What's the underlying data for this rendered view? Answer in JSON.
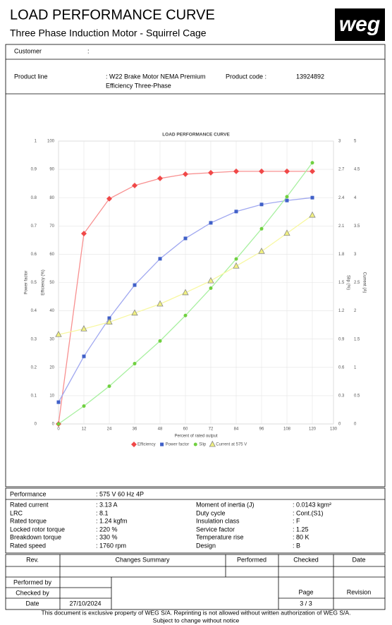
{
  "header": {
    "title": "LOAD PERFORMANCE CURVE",
    "subtitle": "Three Phase Induction Motor - Squirrel Cage",
    "logo": "weg"
  },
  "customer": {
    "label": "Customer",
    "separator": ":"
  },
  "product": {
    "line_label": "Product line",
    "line_value": [
      ": W22 Brake Motor NEMA Premium",
      "Efficiency Three-Phase"
    ],
    "code_label": "Product code :",
    "code_value": "13924892"
  },
  "chart_data": {
    "type": "line",
    "title": "LOAD PERFORMANCE CURVE",
    "xlabel": "Percent of rated output",
    "xlim": [
      0,
      130
    ],
    "xticks": [
      0,
      12,
      24,
      36,
      48,
      60,
      72,
      84,
      96,
      108,
      120,
      130
    ],
    "ylim": [
      0,
      1
    ],
    "yticks": [
      0,
      0.1,
      0.2,
      0.3,
      0.4,
      0.5,
      0.6,
      0.7,
      0.8,
      0.9,
      1
    ],
    "ylabel": "Power factor",
    "y2lim": [
      0,
      100
    ],
    "y2ticks": [
      0,
      10,
      20,
      30,
      40,
      50,
      60,
      70,
      80,
      90,
      100
    ],
    "y2label": "Efficiency (%)",
    "y3lim": [
      0,
      3
    ],
    "y3ticks": [
      0,
      0.3,
      0.6,
      0.9,
      1.2,
      1.5,
      1.8,
      2.1,
      2.4,
      2.7,
      3
    ],
    "y3label": "Slip (%)",
    "y4lim": [
      0,
      5
    ],
    "y4ticks": [
      0,
      0.5,
      1,
      1.5,
      2,
      2.5,
      3,
      3.5,
      4,
      4.5,
      5
    ],
    "y4label": "Current (A)",
    "grid": true,
    "legend": "bottom",
    "x": [
      0,
      12,
      24,
      36,
      48,
      60,
      72,
      84,
      96,
      108,
      120
    ],
    "series": [
      {
        "name": "Efficiency",
        "color": "#f04848",
        "line_color": "#f89090",
        "marker": "diamond",
        "axis": "y2",
        "values": [
          0,
          67.3,
          79.6,
          84.3,
          86.8,
          88.3,
          88.8,
          89.3,
          89.3,
          89.3,
          89.3
        ]
      },
      {
        "name": "Power factor",
        "color": "#4060c8",
        "line_color": "#a0a8f0",
        "marker": "square",
        "axis": "y",
        "values": [
          0.077,
          0.239,
          0.374,
          0.491,
          0.584,
          0.656,
          0.711,
          0.751,
          0.776,
          0.79,
          0.8
        ]
      },
      {
        "name": "Slip",
        "color": "#70d040",
        "line_color": "#a8f0a0",
        "marker": "circle",
        "axis": "y3",
        "values": [
          0,
          0.19,
          0.4,
          0.64,
          0.88,
          1.15,
          1.44,
          1.75,
          2.07,
          2.41,
          2.77
        ]
      },
      {
        "name": "Current at 575 V",
        "color": "#f0f080",
        "line_color": "#f8f8a0",
        "marker": "triangle",
        "axis": "y4",
        "values": [
          1.58,
          1.68,
          1.8,
          1.96,
          2.12,
          2.32,
          2.53,
          2.79,
          3.05,
          3.37,
          3.69
        ]
      }
    ]
  },
  "performance": {
    "label": "Performance",
    "value": ": 575 V 60 Hz 4P",
    "rows": [
      [
        "Rated current",
        ": 3.13 A",
        "Moment of inertia (J)",
        ": 0.0143 kgm²"
      ],
      [
        "LRC",
        ": 8.1",
        "Duty cycle",
        ": Cont.(S1)"
      ],
      [
        "Rated torque",
        ": 1.24 kgfm",
        "Insulation class",
        ": F"
      ],
      [
        "Locked rotor torque",
        ": 220 %",
        "Service factor",
        ": 1.25"
      ],
      [
        "Breakdown torque",
        ": 330 %",
        "Temperature rise",
        ": 80 K"
      ],
      [
        "Rated speed",
        ": 1760 rpm",
        "Design",
        ": B"
      ]
    ]
  },
  "revision": {
    "headers": [
      "Rev.",
      "Changes Summary",
      "Performed",
      "Checked",
      "Date"
    ],
    "performed_by": "Performed by",
    "checked_by": "Checked by",
    "date_label": "Date",
    "date": "27/10/2024",
    "page_label": "Page",
    "page": "3 / 3",
    "revision_label": "Revision"
  },
  "footer": [
    "This document is exclusive property of WEG S/A. Reprinting is not allowed without written authorization of WEG S/A.",
    "Subject to change without notice"
  ]
}
